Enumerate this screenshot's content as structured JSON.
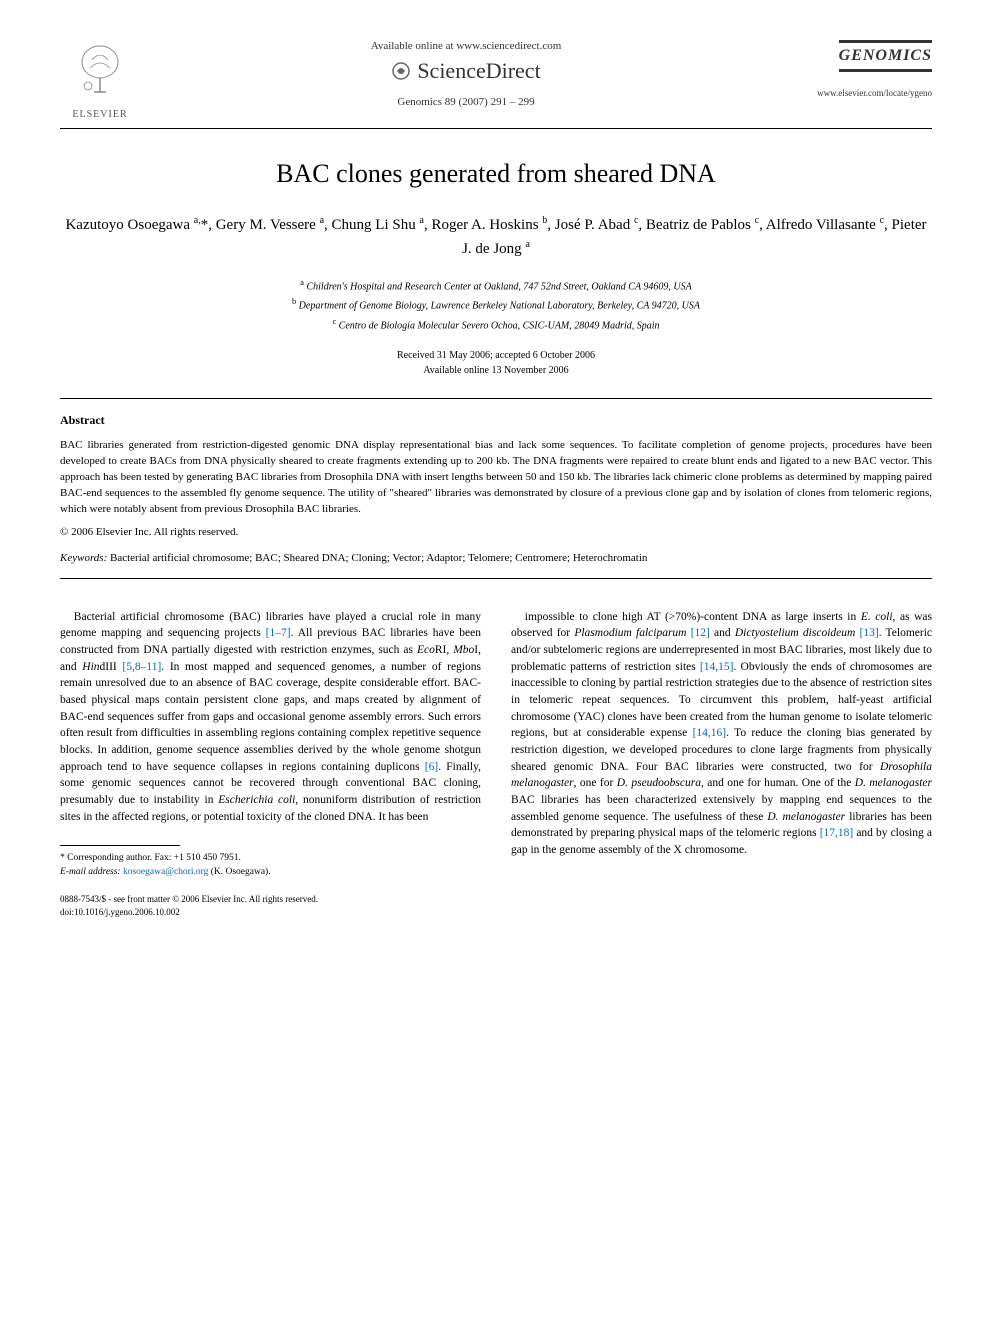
{
  "header": {
    "available_text": "Available online at www.sciencedirect.com",
    "sciencedirect": "ScienceDirect",
    "citation": "Genomics 89 (2007) 291 – 299",
    "elsevier_label": "ELSEVIER",
    "journal_name": "GENOMICS",
    "journal_url": "www.elsevier.com/locate/ygeno"
  },
  "title": "BAC clones generated from sheared DNA",
  "authors_html": "Kazutoyo Osoegawa <sup>a,</sup>*, Gery M. Vessere <sup>a</sup>, Chung Li Shu <sup>a</sup>, Roger A. Hoskins <sup>b</sup>, José P. Abad <sup>c</sup>, Beatriz de Pablos <sup>c</sup>, Alfredo Villasante <sup>c</sup>, Pieter J. de Jong <sup>a</sup>",
  "affiliations": [
    "<sup>a</sup> Children's Hospital and Research Center at Oakland, 747 52nd Street, Oakland CA 94609, USA",
    "<sup>b</sup> Department of Genome Biology, Lawrence Berkeley National Laboratory, Berkeley, CA 94720, USA",
    "<sup>c</sup> Centro de Biología Molecular Severo Ochoa, CSIC-UAM, 28049 Madrid, Spain"
  ],
  "dates": {
    "received": "Received 31 May 2006; accepted 6 October 2006",
    "online": "Available online 13 November 2006"
  },
  "abstract": {
    "heading": "Abstract",
    "text": "BAC libraries generated from restriction-digested genomic DNA display representational bias and lack some sequences. To facilitate completion of genome projects, procedures have been developed to create BACs from DNA physically sheared to create fragments extending up to 200 kb. The DNA fragments were repaired to create blunt ends and ligated to a new BAC vector. This approach has been tested by generating BAC libraries from Drosophila DNA with insert lengths between 50 and 150 kb. The libraries lack chimeric clone problems as determined by mapping paired BAC-end sequences to the assembled fly genome sequence. The utility of \"sheared\" libraries was demonstrated by closure of a previous clone gap and by isolation of clones from telomeric regions, which were notably absent from previous Drosophila BAC libraries.",
    "copyright": "© 2006 Elsevier Inc. All rights reserved."
  },
  "keywords": {
    "label": "Keywords:",
    "text": " Bacterial artificial chromosome; BAC; Sheared DNA; Cloning; Vector; Adaptor; Telomere; Centromere; Heterochromatin"
  },
  "body": {
    "col1": "Bacterial artificial chromosome (BAC) libraries have played a crucial role in many genome mapping and sequencing projects <span class=\"ref-link\">[1–7]</span>. All previous BAC libraries have been constructed from DNA partially digested with restriction enzymes, such as <span class=\"italic\">Eco</span>RI, <span class=\"italic\">Mbo</span>I, and <span class=\"italic\">Hin</span>dIII <span class=\"ref-link\">[5,8–11]</span>. In most mapped and sequenced genomes, a number of regions remain unresolved due to an absence of BAC coverage, despite considerable effort. BAC-based physical maps contain persistent clone gaps, and maps created by alignment of BAC-end sequences suffer from gaps and occasional genome assembly errors. Such errors often result from difficulties in assembling regions containing complex repetitive sequence blocks. In addition, genome sequence assemblies derived by the whole genome shotgun approach tend to have sequence collapses in regions containing duplicons <span class=\"ref-link\">[6]</span>. Finally, some genomic sequences cannot be recovered through conventional BAC cloning, presumably due to instability in <span class=\"italic\">Escherichia coli</span>, nonuniform distribution of restriction sites in the affected regions, or potential toxicity of the cloned DNA. It has been",
    "col2": "impossible to clone high AT (>70%)-content DNA as large inserts in <span class=\"italic\">E. coli</span>, as was observed for <span class=\"italic\">Plasmodium falciparum</span> <span class=\"ref-link\">[12]</span> and <span class=\"italic\">Dictyostelium discoideum</span> <span class=\"ref-link\">[13]</span>. Telomeric and/or subtelomeric regions are underrepresented in most BAC libraries, most likely due to problematic patterns of restriction sites <span class=\"ref-link\">[14,15]</span>. Obviously the ends of chromosomes are inaccessible to cloning by partial restriction strategies due to the absence of restriction sites in telomeric repeat sequences. To circumvent this problem, half-yeast artificial chromosome (YAC) clones have been created from the human genome to isolate telomeric regions, but at considerable expense <span class=\"ref-link\">[14,16]</span>. To reduce the cloning bias generated by restriction digestion, we developed procedures to clone large fragments from physically sheared genomic DNA. Four BAC libraries were constructed, two for <span class=\"italic\">Drosophila melanogaster</span>, one for <span class=\"italic\">D. pseudoobscura</span>, and one for human. One of the <span class=\"italic\">D. melanogaster</span> BAC libraries has been characterized extensively by mapping end sequences to the assembled genome sequence. The usefulness of these <span class=\"italic\">D. melanogaster</span> libraries has been demonstrated by preparing physical maps of the telomeric regions <span class=\"ref-link\">[17,18]</span> and by closing a gap in the genome assembly of the X chromosome."
  },
  "footnote": {
    "corresponding": "* Corresponding author. Fax: +1 510 450 7951.",
    "email_label": "E-mail address:",
    "email": "kosoegawa@chori.org",
    "email_suffix": " (K. Osoegawa)."
  },
  "footer": {
    "line1": "0888-7543/$ - see front matter © 2006 Elsevier Inc. All rights reserved.",
    "line2": "doi:10.1016/j.ygeno.2006.10.002"
  },
  "colors": {
    "link": "#0066cc",
    "text": "#000000",
    "muted": "#555555"
  }
}
